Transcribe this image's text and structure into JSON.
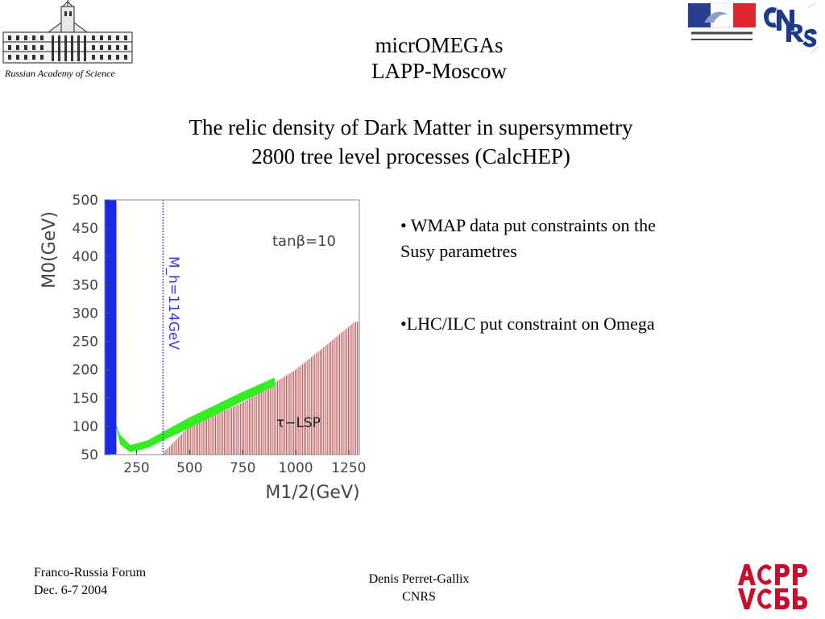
{
  "header": {
    "ras_caption": "Russian Academy of Science",
    "title_line1": "micrOMEGAs",
    "title_line2": "LAPP-Moscow",
    "subtitle_line1": "The relic density of Dark Matter in supersymmetry",
    "subtitle_line2": "2800 tree level processes (CalcHEP)"
  },
  "bullets": [
    {
      "text_line1": "• WMAP data put constraints on the",
      "text_line2": "Susy parametres"
    },
    {
      "text_line1": "•LHC/ILC put constraint on Omega"
    }
  ],
  "footer": {
    "forum": "Franco-Russia Forum",
    "date": "Dec. 6-7 2004",
    "author": "Denis Perret-Gallix",
    "org": "CNRS"
  },
  "colors": {
    "wmap_band": "#33ee22",
    "excluded_blue": "#1a2ae8",
    "stau_lsp_hatch": "#b03a3a",
    "higgs_line": "#3a3ad0"
  },
  "chart_data": {
    "type": "line",
    "xlabel": "M1/2(GeV)",
    "ylabel": "M0(GeV)",
    "xlim": [
      100,
      1300
    ],
    "ylim": [
      50,
      500
    ],
    "x_ticks": [
      250,
      500,
      750,
      1000,
      1250
    ],
    "y_ticks": [
      50,
      100,
      150,
      200,
      250,
      300,
      350,
      400,
      450,
      500
    ],
    "annotations": {
      "tanbeta": "tanβ=10",
      "higgs_label": "M_h=114GeV",
      "stau_label": "τ−LSP"
    },
    "higgs_limit_x": 375,
    "excluded_band_x": [
      100,
      155
    ],
    "wmap_band_lower": [
      [
        155,
        100
      ],
      [
        175,
        68
      ],
      [
        220,
        55
      ],
      [
        300,
        62
      ],
      [
        500,
        98
      ],
      [
        750,
        145
      ],
      [
        900,
        172
      ]
    ],
    "wmap_band_upper": [
      [
        155,
        100
      ],
      [
        170,
        85
      ],
      [
        220,
        66
      ],
      [
        300,
        74
      ],
      [
        500,
        115
      ],
      [
        750,
        160
      ],
      [
        900,
        185
      ]
    ],
    "stau_lsp_boundary": [
      [
        380,
        55
      ],
      [
        500,
        100
      ],
      [
        750,
        142
      ],
      [
        1000,
        200
      ],
      [
        1150,
        245
      ],
      [
        1280,
        285
      ]
    ]
  }
}
